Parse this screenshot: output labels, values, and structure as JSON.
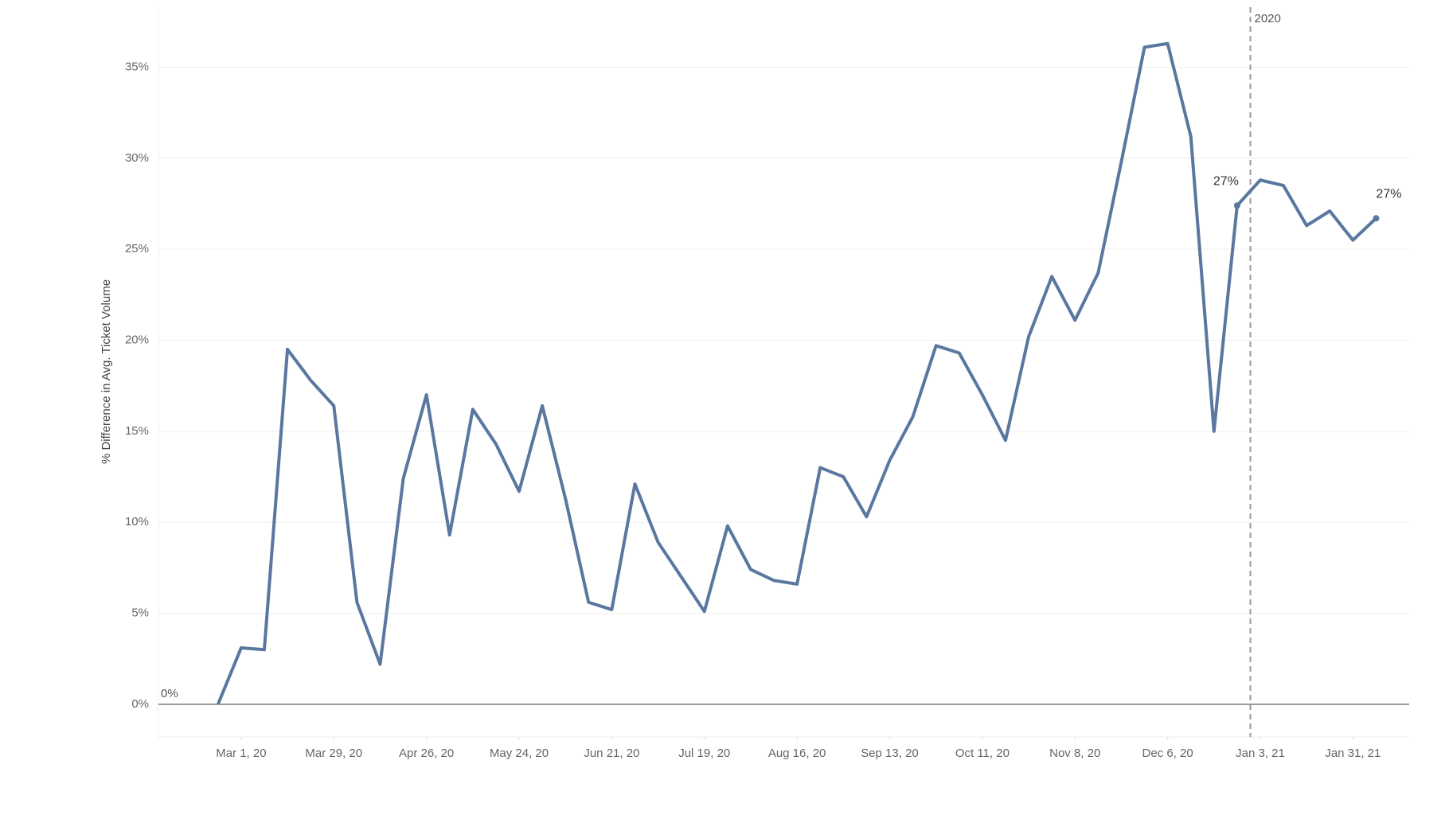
{
  "chart_data": {
    "type": "line",
    "y_label": "% Difference in Avg. Ticket Volume",
    "x": [
      "2020-02-23",
      "2020-03-01",
      "2020-03-08",
      "2020-03-15",
      "2020-03-22",
      "2020-03-29",
      "2020-04-05",
      "2020-04-12",
      "2020-04-19",
      "2020-04-26",
      "2020-05-03",
      "2020-05-10",
      "2020-05-17",
      "2020-05-24",
      "2020-05-31",
      "2020-06-07",
      "2020-06-14",
      "2020-06-21",
      "2020-06-28",
      "2020-07-05",
      "2020-07-12",
      "2020-07-19",
      "2020-07-26",
      "2020-08-02",
      "2020-08-09",
      "2020-08-16",
      "2020-08-23",
      "2020-08-30",
      "2020-09-06",
      "2020-09-13",
      "2020-09-20",
      "2020-09-27",
      "2020-10-04",
      "2020-10-11",
      "2020-10-18",
      "2020-10-25",
      "2020-11-01",
      "2020-11-08",
      "2020-11-15",
      "2020-11-22",
      "2020-11-29",
      "2020-12-06",
      "2020-12-13",
      "2020-12-20",
      "2020-12-27",
      "2021-01-03",
      "2021-01-10",
      "2021-01-17",
      "2021-01-24",
      "2021-01-31",
      "2021-02-07"
    ],
    "series": [
      {
        "color": "#59779f",
        "values": [
          0,
          3.1,
          3.0,
          19.5,
          17.8,
          16.4,
          5.6,
          2.2,
          12.4,
          17.0,
          9.3,
          16.2,
          14.3,
          11.7,
          16.4,
          11.3,
          5.6,
          5.2,
          12.1,
          8.9,
          7.0,
          5.1,
          9.8,
          7.4,
          6.8,
          6.6,
          13.0,
          12.5,
          10.3,
          13.4,
          15.8,
          19.7,
          19.3,
          17.0,
          14.5,
          20.2,
          23.5,
          21.1,
          23.7,
          29.8,
          36.1,
          36.3,
          31.2,
          15.0,
          27.4,
          28.8,
          28.5,
          26.3,
          27.1,
          25.5,
          26.7
        ],
        "value_labels": [
          null,
          null,
          null,
          null,
          null,
          null,
          null,
          null,
          null,
          null,
          null,
          null,
          null,
          null,
          null,
          null,
          null,
          null,
          null,
          null,
          null,
          null,
          null,
          null,
          null,
          null,
          null,
          null,
          null,
          null,
          null,
          null,
          null,
          null,
          null,
          null,
          null,
          null,
          null,
          null,
          null,
          null,
          null,
          null,
          "27%",
          null,
          null,
          null,
          null,
          null,
          "27%"
        ]
      }
    ],
    "xlim": [
      "2020-02-05",
      "2021-02-17"
    ],
    "xticks": [
      {
        "value": "2020-03-01",
        "label": "Mar 1, 20"
      },
      {
        "value": "2020-03-29",
        "label": "Mar 29, 20"
      },
      {
        "value": "2020-04-26",
        "label": "Apr 26, 20"
      },
      {
        "value": "2020-05-24",
        "label": "May 24, 20"
      },
      {
        "value": "2020-06-21",
        "label": "Jun 21, 20"
      },
      {
        "value": "2020-07-19",
        "label": "Jul 19, 20"
      },
      {
        "value": "2020-08-16",
        "label": "Aug 16, 20"
      },
      {
        "value": "2020-09-13",
        "label": "Sep 13, 20"
      },
      {
        "value": "2020-10-11",
        "label": "Oct 11, 20"
      },
      {
        "value": "2020-11-08",
        "label": "Nov 8, 20"
      },
      {
        "value": "2020-12-06",
        "label": "Dec 6, 20"
      },
      {
        "value": "2021-01-03",
        "label": "Jan 3, 21"
      },
      {
        "value": "2021-01-31",
        "label": "Jan 31, 21"
      }
    ],
    "ylim": [
      -1.8,
      38.3
    ],
    "yticks": [
      {
        "value": 0,
        "label": "0%"
      },
      {
        "value": 5,
        "label": "5%"
      },
      {
        "value": 10,
        "label": "10%"
      },
      {
        "value": 15,
        "label": "15%"
      },
      {
        "value": 20,
        "label": "20%"
      },
      {
        "value": 25,
        "label": "25%"
      },
      {
        "value": 30,
        "label": "30%"
      },
      {
        "value": 35,
        "label": "35%"
      }
    ],
    "grid": true,
    "zero_line": {
      "value": 0,
      "label": "0%"
    },
    "reference_line": {
      "x": "2020-12-31",
      "label": "2020"
    }
  }
}
